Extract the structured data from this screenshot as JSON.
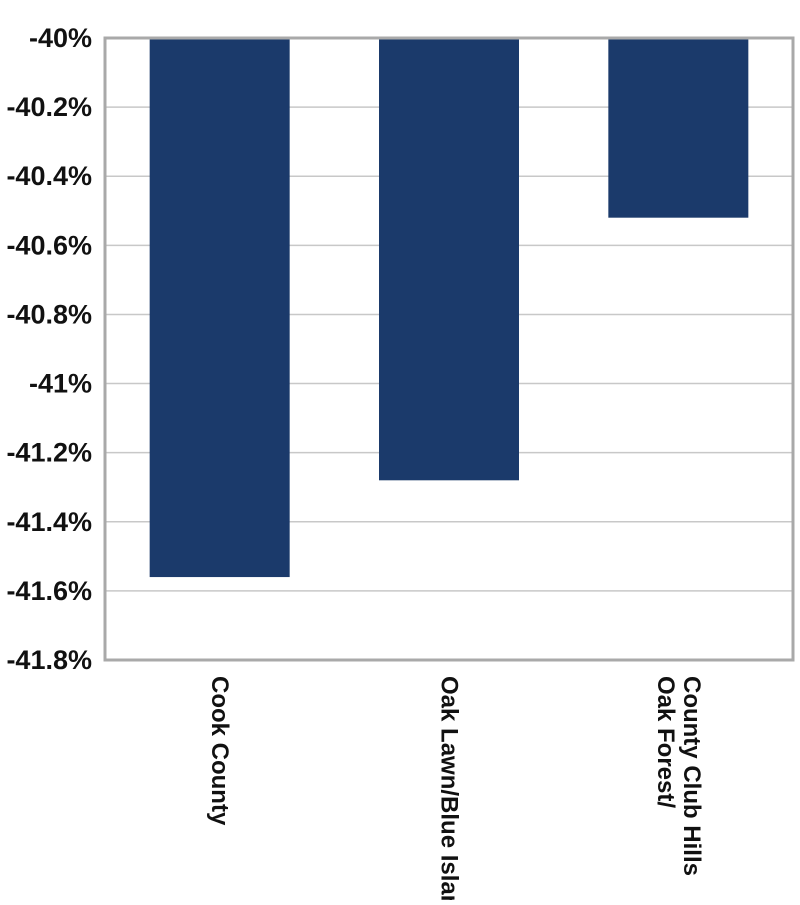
{
  "chart_data": {
    "type": "bar",
    "title": "",
    "xlabel": "",
    "ylabel": "",
    "categories": [
      [
        "Cook County"
      ],
      [
        "Oak Lawn/Blue Island"
      ],
      [
        "Oak Forest/",
        "County Club Hills"
      ]
    ],
    "values": [
      -41.56,
      -41.28,
      -40.52
    ],
    "ylim": [
      -41.8,
      -40
    ],
    "yticks": [
      -40,
      -40.2,
      -40.4,
      -40.6,
      -40.8,
      -41,
      -41.2,
      -41.4,
      -41.6,
      -41.8
    ],
    "ytick_labels": [
      "-40%",
      "-40.2%",
      "-40.4%",
      "-40.6%",
      "-40.8%",
      "-41%",
      "-41.2%",
      "-41.4%",
      "-41.6%",
      "-41.8%"
    ],
    "grid": true,
    "legend": "none",
    "colors": {
      "bar": "#1b3a6b",
      "grid": "#c8c8c8",
      "frame": "#a9a9a9",
      "text": "#111111"
    }
  }
}
